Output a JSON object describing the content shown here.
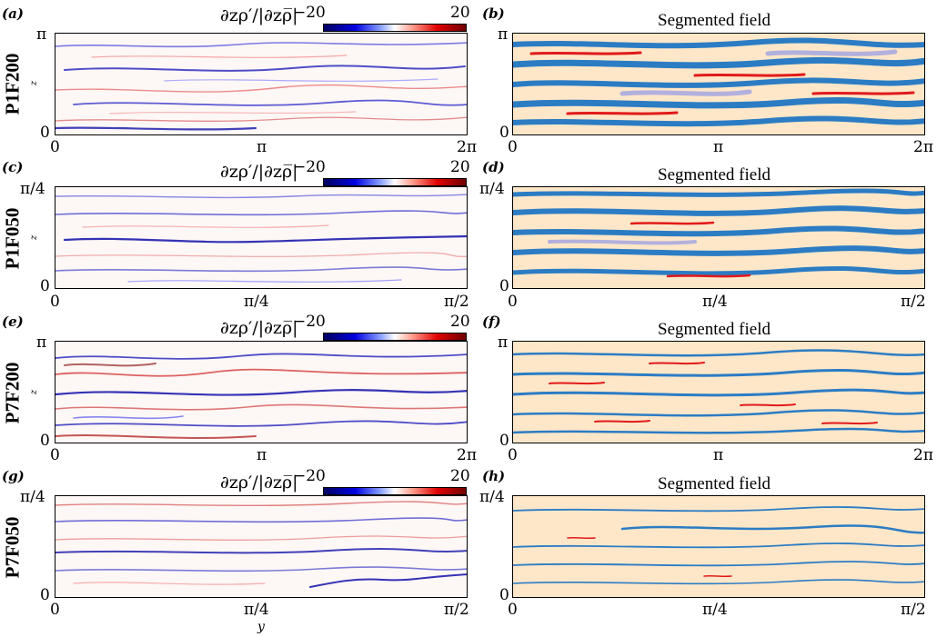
{
  "colorbar": {
    "label": "∂zρ′/|∂zρ̅|",
    "min": "−20",
    "max": "20",
    "colors": [
      "#000060",
      "#0000e0",
      "#ffffff",
      "#e00000",
      "#700000"
    ]
  },
  "segmented_title": "Segmented field",
  "segment_colors": {
    "background": "#fde7c8",
    "blue": "#2c7cc4",
    "red": "#e11a1a",
    "lavender": "#b2b0dd"
  },
  "rows": [
    {
      "name": "P1F200",
      "left_label": "(a)",
      "right_label": "(b)",
      "z_top": "π",
      "z_bottom": "0",
      "x_ticks": [
        "0",
        "π",
        "2π"
      ],
      "z_axis": "z"
    },
    {
      "name": "P1F050",
      "left_label": "(c)",
      "right_label": "(d)",
      "z_top": "π/4",
      "z_bottom": "0",
      "x_ticks": [
        "0",
        "π/4",
        "π/2"
      ],
      "z_axis": "z"
    },
    {
      "name": "P7F200",
      "left_label": "(e)",
      "right_label": "(f)",
      "z_top": "π",
      "z_bottom": "0",
      "x_ticks": [
        "0",
        "π",
        "2π"
      ],
      "z_axis": "z"
    },
    {
      "name": "P7F050",
      "left_label": "(g)",
      "right_label": "(h)",
      "z_top": "π/4",
      "z_bottom": "0",
      "x_ticks": [
        "0",
        "π/4",
        "π/2"
      ],
      "z_axis": ""
    }
  ],
  "y_axis_label": "y"
}
